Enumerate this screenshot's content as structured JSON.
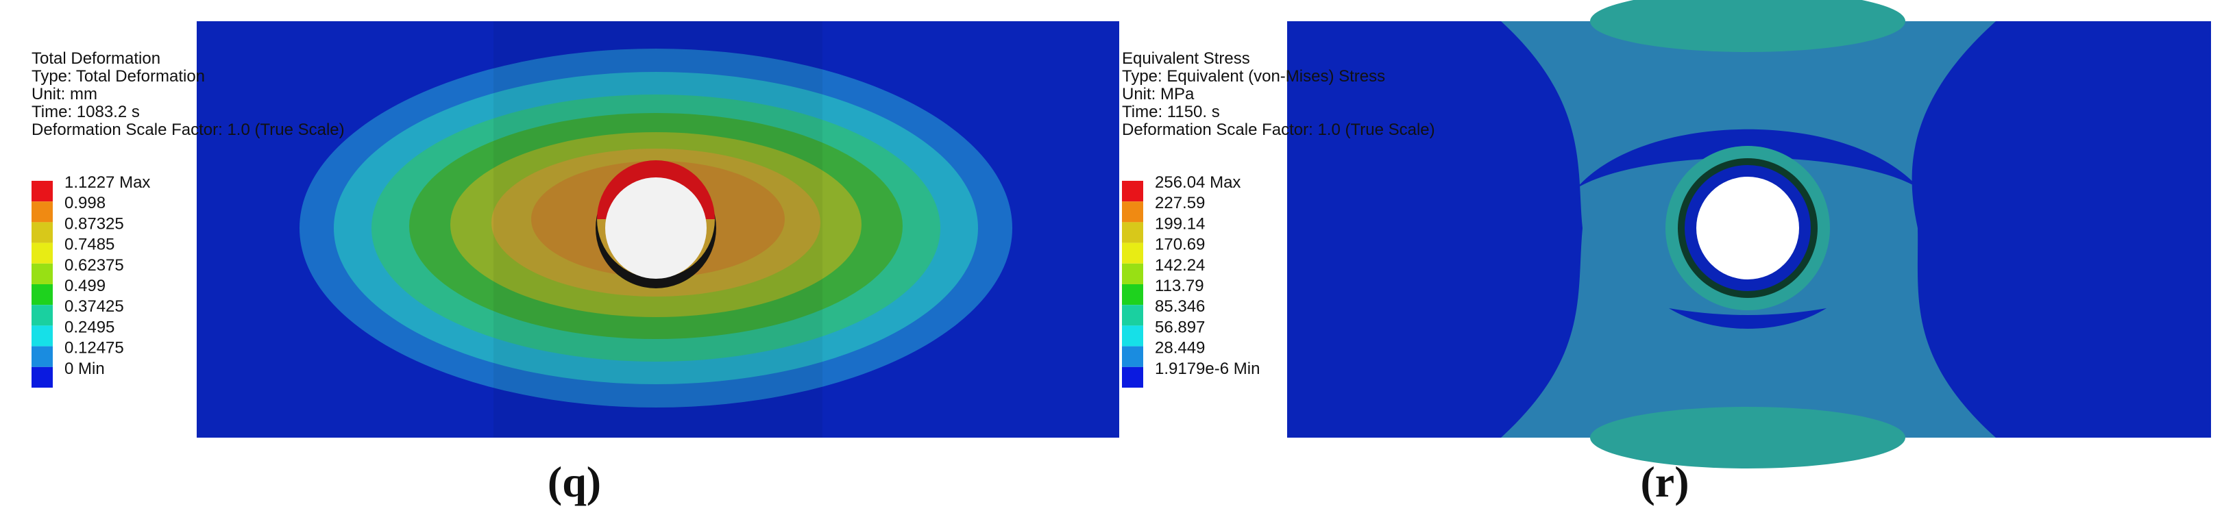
{
  "panels": [
    {
      "info": [
        "Total Deformation",
        "Type: Total Deformation",
        "Unit: mm",
        "Time: 1083.2 s",
        "Deformation Scale Factor: 1.0 (True Scale)"
      ],
      "legend": [
        "1.1227 Max",
        "0.998",
        "0.87325",
        "0.7485",
        "0.62375",
        "0.499",
        "0.37425",
        "0.2495",
        "0.12475",
        "0 Min"
      ],
      "caption": "(q)"
    },
    {
      "info": [
        "Equivalent Stress",
        "Type: Equivalent (von-Mises) Stress",
        "Unit: MPa",
        "Time: 1150. s",
        "Deformation Scale Factor: 1.0 (True Scale)"
      ],
      "legend": [
        "256.04 Max",
        "227.59",
        "199.14",
        "170.69",
        "142.24",
        "113.79",
        "85.346",
        "56.897",
        "28.449",
        "1.9179e-6 Min"
      ],
      "caption": "(r)"
    }
  ]
}
